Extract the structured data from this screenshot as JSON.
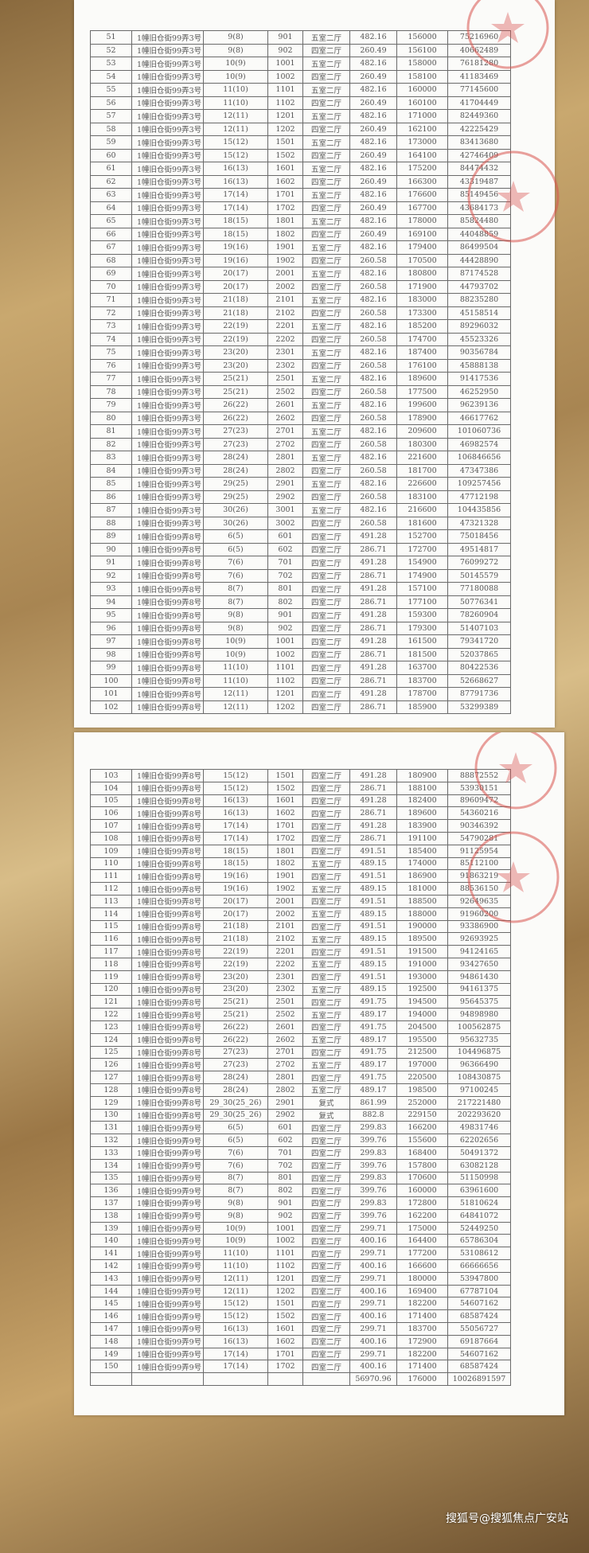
{
  "tables": [
    {
      "rows": [
        [
          "51",
          "1幢旧仓街99弄3号",
          "9(8)",
          "901",
          "五室二厅",
          "482.16",
          "156000",
          "75216960"
        ],
        [
          "52",
          "1幢旧仓街99弄3号",
          "9(8)",
          "902",
          "四室二厅",
          "260.49",
          "156100",
          "40662489"
        ],
        [
          "53",
          "1幢旧仓街99弄3号",
          "10(9)",
          "1001",
          "五室二厅",
          "482.16",
          "158000",
          "76181280"
        ],
        [
          "54",
          "1幢旧仓街99弄3号",
          "10(9)",
          "1002",
          "四室二厅",
          "260.49",
          "158100",
          "41183469"
        ],
        [
          "55",
          "1幢旧仓街99弄3号",
          "11(10)",
          "1101",
          "五室二厅",
          "482.16",
          "160000",
          "77145600"
        ],
        [
          "56",
          "1幢旧仓街99弄3号",
          "11(10)",
          "1102",
          "四室二厅",
          "260.49",
          "160100",
          "41704449"
        ],
        [
          "57",
          "1幢旧仓街99弄3号",
          "12(11)",
          "1201",
          "五室二厅",
          "482.16",
          "171000",
          "82449360"
        ],
        [
          "58",
          "1幢旧仓街99弄3号",
          "12(11)",
          "1202",
          "四室二厅",
          "260.49",
          "162100",
          "42225429"
        ],
        [
          "59",
          "1幢旧仓街99弄3号",
          "15(12)",
          "1501",
          "五室二厅",
          "482.16",
          "173000",
          "83413680"
        ],
        [
          "60",
          "1幢旧仓街99弄3号",
          "15(12)",
          "1502",
          "四室二厅",
          "260.49",
          "164100",
          "42746409"
        ],
        [
          "61",
          "1幢旧仓街99弄3号",
          "16(13)",
          "1601",
          "五室二厅",
          "482.16",
          "175200",
          "84474432"
        ],
        [
          "62",
          "1幢旧仓街99弄3号",
          "16(13)",
          "1602",
          "四室二厅",
          "260.49",
          "166300",
          "43319487"
        ],
        [
          "63",
          "1幢旧仓街99弄3号",
          "17(14)",
          "1701",
          "五室二厅",
          "482.16",
          "176600",
          "85149456"
        ],
        [
          "64",
          "1幢旧仓街99弄3号",
          "17(14)",
          "1702",
          "四室二厅",
          "260.49",
          "167700",
          "43684173"
        ],
        [
          "65",
          "1幢旧仓街99弄3号",
          "18(15)",
          "1801",
          "五室二厅",
          "482.16",
          "178000",
          "85824480"
        ],
        [
          "66",
          "1幢旧仓街99弄3号",
          "18(15)",
          "1802",
          "四室二厅",
          "260.49",
          "169100",
          "44048859"
        ],
        [
          "67",
          "1幢旧仓街99弄3号",
          "19(16)",
          "1901",
          "五室二厅",
          "482.16",
          "179400",
          "86499504"
        ],
        [
          "68",
          "1幢旧仓街99弄3号",
          "19(16)",
          "1902",
          "四室二厅",
          "260.58",
          "170500",
          "44428890"
        ],
        [
          "69",
          "1幢旧仓街99弄3号",
          "20(17)",
          "2001",
          "五室二厅",
          "482.16",
          "180800",
          "87174528"
        ],
        [
          "70",
          "1幢旧仓街99弄3号",
          "20(17)",
          "2002",
          "四室二厅",
          "260.58",
          "171900",
          "44793702"
        ],
        [
          "71",
          "1幢旧仓街99弄3号",
          "21(18)",
          "2101",
          "五室二厅",
          "482.16",
          "183000",
          "88235280"
        ],
        [
          "72",
          "1幢旧仓街99弄3号",
          "21(18)",
          "2102",
          "四室二厅",
          "260.58",
          "173300",
          "45158514"
        ],
        [
          "73",
          "1幢旧仓街99弄3号",
          "22(19)",
          "2201",
          "五室二厅",
          "482.16",
          "185200",
          "89296032"
        ],
        [
          "74",
          "1幢旧仓街99弄3号",
          "22(19)",
          "2202",
          "四室二厅",
          "260.58",
          "174700",
          "45523326"
        ],
        [
          "75",
          "1幢旧仓街99弄3号",
          "23(20)",
          "2301",
          "五室二厅",
          "482.16",
          "187400",
          "90356784"
        ],
        [
          "76",
          "1幢旧仓街99弄3号",
          "23(20)",
          "2302",
          "四室二厅",
          "260.58",
          "176100",
          "45888138"
        ],
        [
          "77",
          "1幢旧仓街99弄3号",
          "25(21)",
          "2501",
          "五室二厅",
          "482.16",
          "189600",
          "91417536"
        ],
        [
          "78",
          "1幢旧仓街99弄3号",
          "25(21)",
          "2502",
          "四室二厅",
          "260.58",
          "177500",
          "46252950"
        ],
        [
          "79",
          "1幢旧仓街99弄3号",
          "26(22)",
          "2601",
          "五室二厅",
          "482.16",
          "199600",
          "96239136"
        ],
        [
          "80",
          "1幢旧仓街99弄3号",
          "26(22)",
          "2602",
          "四室二厅",
          "260.58",
          "178900",
          "46617762"
        ],
        [
          "81",
          "1幢旧仓街99弄3号",
          "27(23)",
          "2701",
          "五室二厅",
          "482.16",
          "209600",
          "101060736"
        ],
        [
          "82",
          "1幢旧仓街99弄3号",
          "27(23)",
          "2702",
          "四室二厅",
          "260.58",
          "180300",
          "46982574"
        ],
        [
          "83",
          "1幢旧仓街99弄3号",
          "28(24)",
          "2801",
          "五室二厅",
          "482.16",
          "221600",
          "106846656"
        ],
        [
          "84",
          "1幢旧仓街99弄3号",
          "28(24)",
          "2802",
          "四室二厅",
          "260.58",
          "181700",
          "47347386"
        ],
        [
          "85",
          "1幢旧仓街99弄3号",
          "29(25)",
          "2901",
          "五室二厅",
          "482.16",
          "226600",
          "109257456"
        ],
        [
          "86",
          "1幢旧仓街99弄3号",
          "29(25)",
          "2902",
          "四室二厅",
          "260.58",
          "183100",
          "47712198"
        ],
        [
          "87",
          "1幢旧仓街99弄3号",
          "30(26)",
          "3001",
          "五室二厅",
          "482.16",
          "216600",
          "104435856"
        ],
        [
          "88",
          "1幢旧仓街99弄3号",
          "30(26)",
          "3002",
          "四室二厅",
          "260.58",
          "181600",
          "47321328"
        ],
        [
          "89",
          "1幢旧仓街99弄8号",
          "6(5)",
          "601",
          "四室二厅",
          "491.28",
          "152700",
          "75018456"
        ],
        [
          "90",
          "1幢旧仓街99弄8号",
          "6(5)",
          "602",
          "四室二厅",
          "286.71",
          "172700",
          "49514817"
        ],
        [
          "91",
          "1幢旧仓街99弄8号",
          "7(6)",
          "701",
          "四室二厅",
          "491.28",
          "154900",
          "76099272"
        ],
        [
          "92",
          "1幢旧仓街99弄8号",
          "7(6)",
          "702",
          "四室二厅",
          "286.71",
          "174900",
          "50145579"
        ],
        [
          "93",
          "1幢旧仓街99弄8号",
          "8(7)",
          "801",
          "四室二厅",
          "491.28",
          "157100",
          "77180088"
        ],
        [
          "94",
          "1幢旧仓街99弄8号",
          "8(7)",
          "802",
          "四室二厅",
          "286.71",
          "177100",
          "50776341"
        ],
        [
          "95",
          "1幢旧仓街99弄8号",
          "9(8)",
          "901",
          "四室二厅",
          "491.28",
          "159300",
          "78260904"
        ],
        [
          "96",
          "1幢旧仓街99弄8号",
          "9(8)",
          "902",
          "四室二厅",
          "286.71",
          "179300",
          "51407103"
        ],
        [
          "97",
          "1幢旧仓街99弄8号",
          "10(9)",
          "1001",
          "四室二厅",
          "491.28",
          "161500",
          "79341720"
        ],
        [
          "98",
          "1幢旧仓街99弄8号",
          "10(9)",
          "1002",
          "四室二厅",
          "286.71",
          "181500",
          "52037865"
        ],
        [
          "99",
          "1幢旧仓街99弄8号",
          "11(10)",
          "1101",
          "四室二厅",
          "491.28",
          "163700",
          "80422536"
        ],
        [
          "100",
          "1幢旧仓街99弄8号",
          "11(10)",
          "1102",
          "四室二厅",
          "286.71",
          "183700",
          "52668627"
        ],
        [
          "101",
          "1幢旧仓街99弄8号",
          "12(11)",
          "1201",
          "四室二厅",
          "491.28",
          "178700",
          "87791736"
        ],
        [
          "102",
          "1幢旧仓街99弄8号",
          "12(11)",
          "1202",
          "四室二厅",
          "286.71",
          "185900",
          "53299389"
        ]
      ]
    },
    {
      "rows": [
        [
          "103",
          "1幢旧仓街99弄8号",
          "15(12)",
          "1501",
          "四室二厅",
          "491.28",
          "180900",
          "88872552"
        ],
        [
          "104",
          "1幢旧仓街99弄8号",
          "15(12)",
          "1502",
          "四室二厅",
          "286.71",
          "188100",
          "53930151"
        ],
        [
          "105",
          "1幢旧仓街99弄8号",
          "16(13)",
          "1601",
          "四室二厅",
          "491.28",
          "182400",
          "89609472"
        ],
        [
          "106",
          "1幢旧仓街99弄8号",
          "16(13)",
          "1602",
          "四室二厅",
          "286.71",
          "189600",
          "54360216"
        ],
        [
          "107",
          "1幢旧仓街99弄8号",
          "17(14)",
          "1701",
          "四室二厅",
          "491.28",
          "183900",
          "90346392"
        ],
        [
          "108",
          "1幢旧仓街99弄8号",
          "17(14)",
          "1702",
          "四室二厅",
          "286.71",
          "191100",
          "54790281"
        ],
        [
          "109",
          "1幢旧仓街99弄8号",
          "18(15)",
          "1801",
          "四室二厅",
          "491.51",
          "185400",
          "91125954"
        ],
        [
          "110",
          "1幢旧仓街99弄8号",
          "18(15)",
          "1802",
          "五室二厅",
          "489.15",
          "174000",
          "85112100"
        ],
        [
          "111",
          "1幢旧仓街99弄8号",
          "19(16)",
          "1901",
          "四室二厅",
          "491.51",
          "186900",
          "91863219"
        ],
        [
          "112",
          "1幢旧仓街99弄8号",
          "19(16)",
          "1902",
          "五室二厅",
          "489.15",
          "181000",
          "88536150"
        ],
        [
          "113",
          "1幢旧仓街99弄8号",
          "20(17)",
          "2001",
          "四室二厅",
          "491.51",
          "188500",
          "92649635"
        ],
        [
          "114",
          "1幢旧仓街99弄8号",
          "20(17)",
          "2002",
          "五室二厅",
          "489.15",
          "188000",
          "91960200"
        ],
        [
          "115",
          "1幢旧仓街99弄8号",
          "21(18)",
          "2101",
          "四室二厅",
          "491.51",
          "190000",
          "93386900"
        ],
        [
          "116",
          "1幢旧仓街99弄8号",
          "21(18)",
          "2102",
          "五室二厅",
          "489.15",
          "189500",
          "92693925"
        ],
        [
          "117",
          "1幢旧仓街99弄8号",
          "22(19)",
          "2201",
          "四室二厅",
          "491.51",
          "191500",
          "94124165"
        ],
        [
          "118",
          "1幢旧仓街99弄8号",
          "22(19)",
          "2202",
          "五室二厅",
          "489.15",
          "191000",
          "93427650"
        ],
        [
          "119",
          "1幢旧仓街99弄8号",
          "23(20)",
          "2301",
          "四室二厅",
          "491.51",
          "193000",
          "94861430"
        ],
        [
          "120",
          "1幢旧仓街99弄8号",
          "23(20)",
          "2302",
          "五室二厅",
          "489.15",
          "192500",
          "94161375"
        ],
        [
          "121",
          "1幢旧仓街99弄8号",
          "25(21)",
          "2501",
          "四室二厅",
          "491.75",
          "194500",
          "95645375"
        ],
        [
          "122",
          "1幢旧仓街99弄8号",
          "25(21)",
          "2502",
          "五室二厅",
          "489.17",
          "194000",
          "94898980"
        ],
        [
          "123",
          "1幢旧仓街99弄8号",
          "26(22)",
          "2601",
          "四室二厅",
          "491.75",
          "204500",
          "100562875"
        ],
        [
          "124",
          "1幢旧仓街99弄8号",
          "26(22)",
          "2602",
          "五室二厅",
          "489.17",
          "195500",
          "95632735"
        ],
        [
          "125",
          "1幢旧仓街99弄8号",
          "27(23)",
          "2701",
          "四室二厅",
          "491.75",
          "212500",
          "104496875"
        ],
        [
          "126",
          "1幢旧仓街99弄8号",
          "27(23)",
          "2702",
          "五室二厅",
          "489.17",
          "197000",
          "96366490"
        ],
        [
          "127",
          "1幢旧仓街99弄8号",
          "28(24)",
          "2801",
          "四室二厅",
          "491.75",
          "220500",
          "108430875"
        ],
        [
          "128",
          "1幢旧仓街99弄8号",
          "28(24)",
          "2802",
          "五室二厅",
          "489.17",
          "198500",
          "97100245"
        ],
        [
          "129",
          "1幢旧仓街99弄8号",
          "29_30(25_26)",
          "2901",
          "复式",
          "861.99",
          "252000",
          "217221480"
        ],
        [
          "130",
          "1幢旧仓街99弄8号",
          "29_30(25_26)",
          "2902",
          "复式",
          "882.8",
          "229150",
          "202293620"
        ],
        [
          "131",
          "1幢旧仓街99弄9号",
          "6(5)",
          "601",
          "四室二厅",
          "299.83",
          "166200",
          "49831746"
        ],
        [
          "132",
          "1幢旧仓街99弄9号",
          "6(5)",
          "602",
          "四室二厅",
          "399.76",
          "155600",
          "62202656"
        ],
        [
          "133",
          "1幢旧仓街99弄9号",
          "7(6)",
          "701",
          "四室二厅",
          "299.83",
          "168400",
          "50491372"
        ],
        [
          "134",
          "1幢旧仓街99弄9号",
          "7(6)",
          "702",
          "四室二厅",
          "399.76",
          "157800",
          "63082128"
        ],
        [
          "135",
          "1幢旧仓街99弄9号",
          "8(7)",
          "801",
          "四室二厅",
          "299.83",
          "170600",
          "51150998"
        ],
        [
          "136",
          "1幢旧仓街99弄9号",
          "8(7)",
          "802",
          "四室二厅",
          "399.76",
          "160000",
          "63961600"
        ],
        [
          "137",
          "1幢旧仓街99弄9号",
          "9(8)",
          "901",
          "四室二厅",
          "299.83",
          "172800",
          "51810624"
        ],
        [
          "138",
          "1幢旧仓街99弄9号",
          "9(8)",
          "902",
          "四室二厅",
          "399.76",
          "162200",
          "64841072"
        ],
        [
          "139",
          "1幢旧仓街99弄9号",
          "10(9)",
          "1001",
          "四室二厅",
          "299.71",
          "175000",
          "52449250"
        ],
        [
          "140",
          "1幢旧仓街99弄9号",
          "10(9)",
          "1002",
          "四室二厅",
          "400.16",
          "164400",
          "65786304"
        ],
        [
          "141",
          "1幢旧仓街99弄9号",
          "11(10)",
          "1101",
          "四室二厅",
          "299.71",
          "177200",
          "53108612"
        ],
        [
          "142",
          "1幢旧仓街99弄9号",
          "11(10)",
          "1102",
          "四室二厅",
          "400.16",
          "166600",
          "66666656"
        ],
        [
          "143",
          "1幢旧仓街99弄9号",
          "12(11)",
          "1201",
          "四室二厅",
          "299.71",
          "180000",
          "53947800"
        ],
        [
          "144",
          "1幢旧仓街99弄9号",
          "12(11)",
          "1202",
          "四室二厅",
          "400.16",
          "169400",
          "67787104"
        ],
        [
          "145",
          "1幢旧仓街99弄9号",
          "15(12)",
          "1501",
          "四室二厅",
          "299.71",
          "182200",
          "54607162"
        ],
        [
          "146",
          "1幢旧仓街99弄9号",
          "15(12)",
          "1502",
          "四室二厅",
          "400.16",
          "171400",
          "68587424"
        ],
        [
          "147",
          "1幢旧仓街99弄9号",
          "16(13)",
          "1601",
          "四室二厅",
          "299.71",
          "183700",
          "55056727"
        ],
        [
          "148",
          "1幢旧仓街99弄9号",
          "16(13)",
          "1602",
          "四室二厅",
          "400.16",
          "172900",
          "69187664"
        ],
        [
          "149",
          "1幢旧仓街99弄9号",
          "17(14)",
          "1701",
          "四室二厅",
          "299.71",
          "182200",
          "54607162"
        ],
        [
          "150",
          "1幢旧仓街99弄9号",
          "17(14)",
          "1702",
          "四室二厅",
          "400.16",
          "171400",
          "68587424"
        ],
        [
          "",
          "",
          "",
          "",
          "",
          "56970.96",
          "176000",
          "10026891597"
        ]
      ]
    }
  ],
  "stamp_color": "#d9534f",
  "watermark": "搜狐号@搜狐焦点广安站"
}
